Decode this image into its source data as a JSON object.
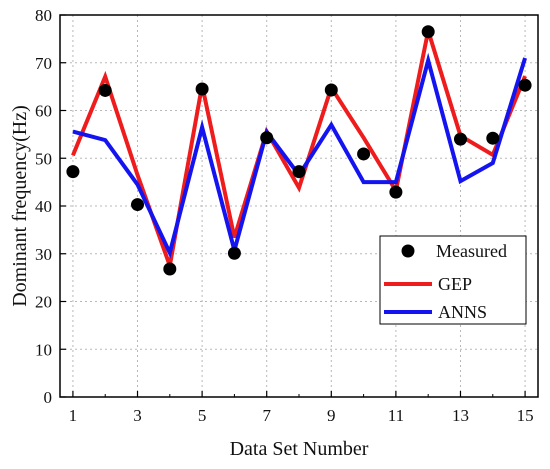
{
  "chart_data": {
    "type": "line",
    "xlabel": "Data Set Number",
    "ylabel": "Dominant frequency(Hz)",
    "xlim": [
      0.6,
      15.4
    ],
    "ylim": [
      0,
      80
    ],
    "x_ticks": [
      1,
      3,
      5,
      7,
      9,
      11,
      13,
      15
    ],
    "y_ticks": [
      0,
      10,
      20,
      30,
      40,
      50,
      60,
      70,
      80
    ],
    "grid": true,
    "legend_position": "lower-right",
    "x": [
      1,
      2,
      3,
      4,
      5,
      6,
      7,
      8,
      9,
      10,
      11,
      12,
      13,
      14,
      15
    ],
    "series": [
      {
        "name": "Measured",
        "style": "scatter",
        "color": "#000000",
        "values": [
          47.2,
          64.2,
          40.3,
          26.8,
          64.5,
          30.1,
          54.3,
          47.2,
          64.3,
          50.9,
          42.9,
          76.5,
          54.0,
          54.2,
          65.3
        ]
      },
      {
        "name": "GEP",
        "style": "line",
        "color": "#ee1c1c",
        "values": [
          50.6,
          67.1,
          46.5,
          27.5,
          65.3,
          33.4,
          55.6,
          43.8,
          64.8,
          54.3,
          43.2,
          76.7,
          54.7,
          50.7,
          67.2
        ]
      },
      {
        "name": "ANNS",
        "style": "line",
        "color": "#1414f0",
        "values": [
          55.6,
          53.8,
          44.5,
          30.2,
          56.5,
          30.7,
          55.5,
          46.5,
          57.0,
          45.0,
          45.0,
          70.5,
          45.2,
          49.0,
          71.0
        ]
      }
    ]
  }
}
